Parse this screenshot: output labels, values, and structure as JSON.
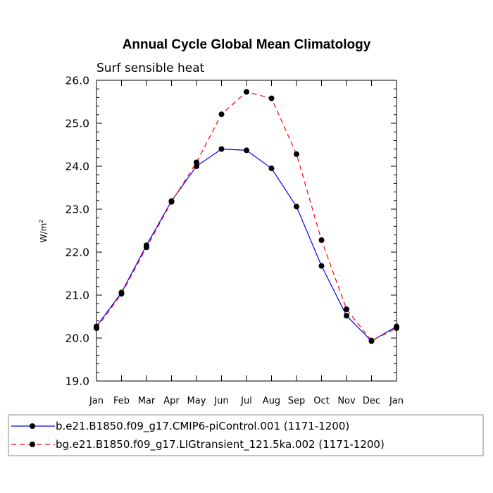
{
  "chart_data": {
    "type": "line",
    "title": "Annual Cycle Global Mean Climatology",
    "subtitle": "Surf sensible heat",
    "ylabel": "W/m",
    "ylabel_superscript": "2",
    "xlabel": "",
    "categories": [
      "Jan",
      "Feb",
      "Mar",
      "Apr",
      "May",
      "Jun",
      "Jul",
      "Aug",
      "Sep",
      "Oct",
      "Nov",
      "Dec",
      "Jan"
    ],
    "ylim": [
      19.0,
      26.0
    ],
    "yticks": [
      "19.0",
      "20.0",
      "21.0",
      "22.0",
      "23.0",
      "24.0",
      "25.0",
      "26.0"
    ],
    "grid": false,
    "legend_position": "bottom",
    "series": [
      {
        "name": "b.e21.B1850.f09_g17.CMIP6-piControl.001 (1171-1200)",
        "color": "#0000ff",
        "dash": "solid",
        "marker": "filled-circle",
        "values": [
          20.27,
          21.06,
          22.16,
          23.19,
          24.0,
          24.4,
          24.37,
          23.95,
          23.06,
          21.68,
          20.52,
          19.93,
          20.27
        ]
      },
      {
        "name": "bg.e21.B1850.f09_g17.LIGtransient_121.5ka.002 (1171-1200)",
        "color": "#ff0000",
        "dash": "dashed",
        "marker": "filled-circle",
        "values": [
          20.23,
          21.03,
          22.11,
          23.17,
          24.09,
          25.21,
          25.73,
          25.58,
          24.28,
          22.28,
          20.67,
          19.94,
          20.23
        ]
      }
    ]
  }
}
